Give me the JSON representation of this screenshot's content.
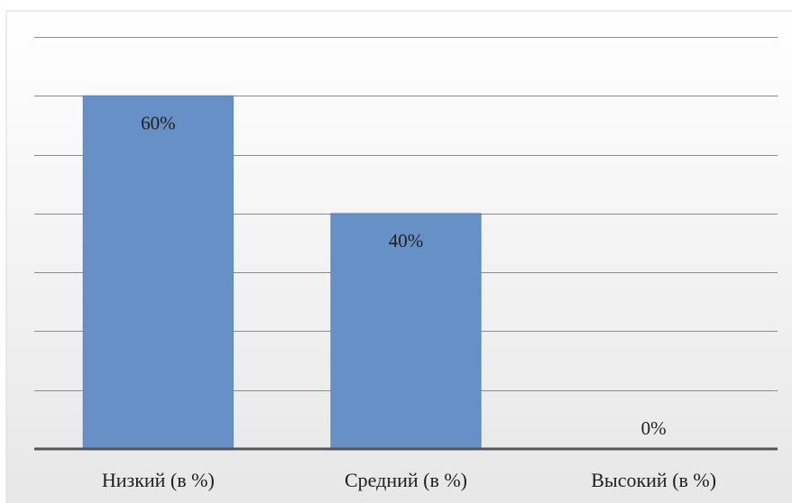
{
  "chart_data": {
    "type": "bar",
    "categories": [
      "Низкий (в %)",
      "Средний (в %)",
      "Высокий (в %)"
    ],
    "values": [
      60,
      40,
      0
    ],
    "data_labels": [
      "60%",
      "40%",
      "0%"
    ],
    "title": "",
    "xlabel": "",
    "ylabel": "",
    "ylim": [
      0,
      70
    ],
    "grid": true,
    "legend": "none",
    "colors": {
      "bar_fill": "#6690C6",
      "bar_stroke": "#5A82B8",
      "bg_top": "#FFFFFF",
      "bg_bottom": "#E7E7E7",
      "grid": "#8C8C8C",
      "baseline": "#555555",
      "frame": "#D9D9D9"
    }
  }
}
